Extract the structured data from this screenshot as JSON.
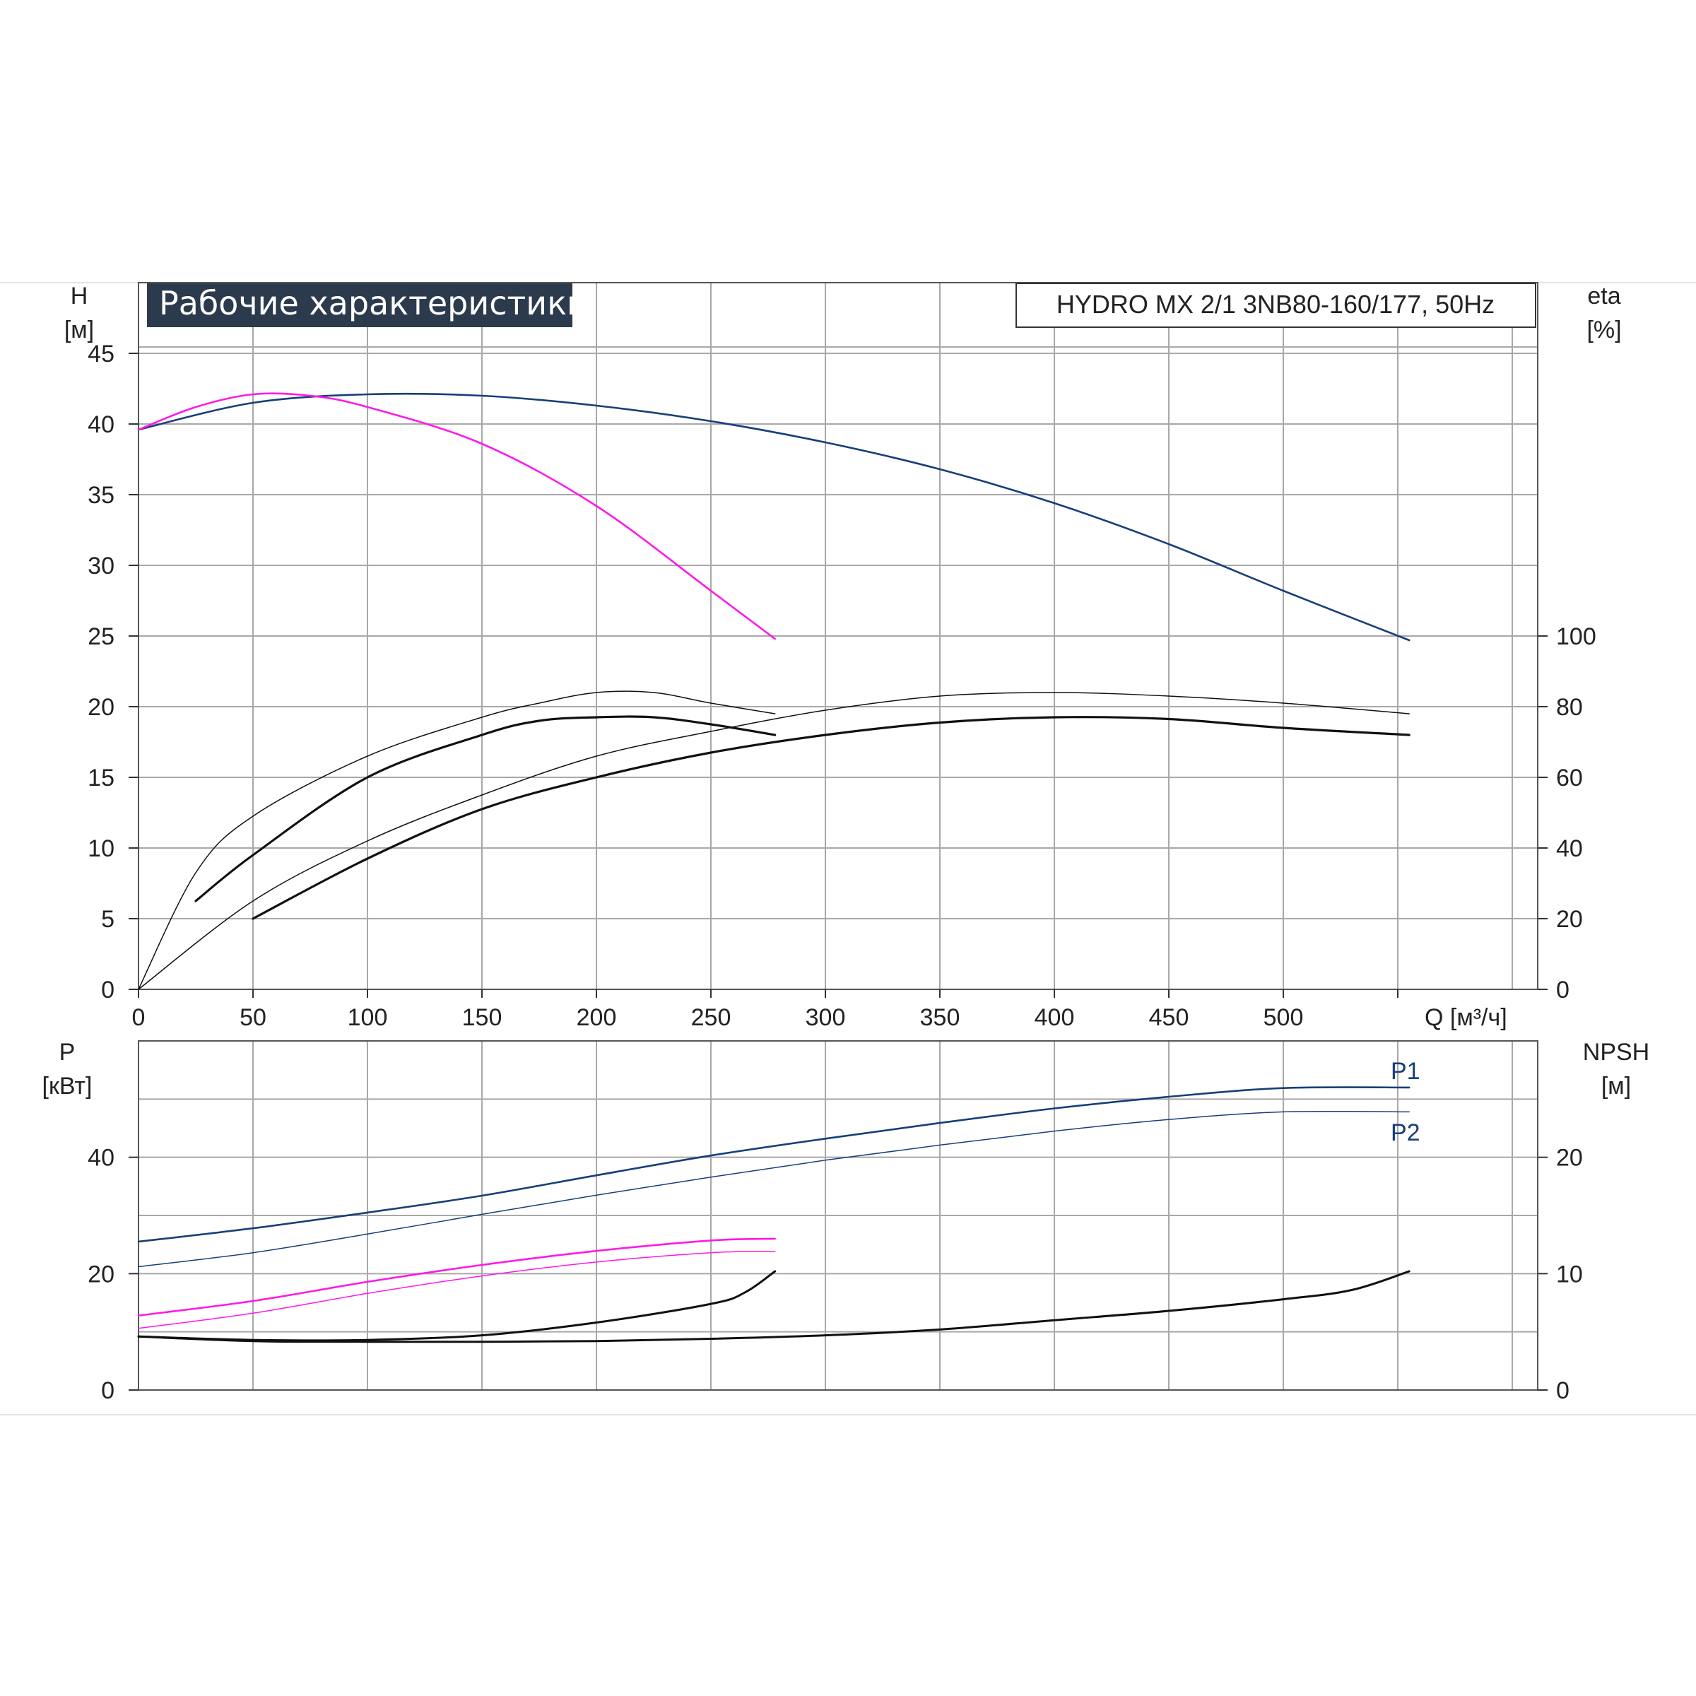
{
  "title": "Рабочие характеристики",
  "model": "HYDRO MX 2/1 3NB80-160/177, 50Hz",
  "colors": {
    "blue": "#173f7a",
    "magenta": "#ff19e8",
    "black": "#111111",
    "grid": "#a8a8a8",
    "title_bg": "#2c3a4e"
  },
  "chart_data": [
    {
      "type": "line",
      "name": "top",
      "x_label": "Q [м³/ч]",
      "x_ticks": [
        "0",
        "50",
        "100",
        "150",
        "200",
        "250",
        "300",
        "350",
        "400",
        "450",
        "500"
      ],
      "xlim": [
        0,
        610
      ],
      "y_label": [
        "H",
        "[м]"
      ],
      "y_ticks": [
        "0",
        "5",
        "10",
        "15",
        "20",
        "25",
        "30",
        "35",
        "40",
        "45"
      ],
      "ylim": [
        0,
        50
      ],
      "y2_label": [
        "eta",
        "[%]"
      ],
      "y2_ticks": [
        "0",
        "20",
        "40",
        "60",
        "80",
        "100"
      ],
      "y2lim": [
        0,
        200
      ],
      "grid": true,
      "series": [
        {
          "axis": "H",
          "color": "blue",
          "width": 2.6,
          "points": [
            [
              0,
              39.6
            ],
            [
              50,
              41.5
            ],
            [
              100,
              42.1
            ],
            [
              150,
              42.0
            ],
            [
              200,
              41.3
            ],
            [
              250,
              40.2
            ],
            [
              300,
              38.7
            ],
            [
              350,
              36.8
            ],
            [
              400,
              34.4
            ],
            [
              450,
              31.5
            ],
            [
              500,
              28.2
            ],
            [
              555,
              24.7
            ]
          ]
        },
        {
          "axis": "H",
          "color": "magenta",
          "width": 2.6,
          "points": [
            [
              0,
              39.6
            ],
            [
              25,
              41.2
            ],
            [
              50,
              42.1
            ],
            [
              75,
              42.0
            ],
            [
              100,
              41.2
            ],
            [
              150,
              38.6
            ],
            [
              200,
              34.2
            ],
            [
              250,
              28.2
            ],
            [
              278,
              24.8
            ]
          ]
        },
        {
          "axis": "eta",
          "color": "black",
          "width": 1.5,
          "points": [
            [
              0,
              0
            ],
            [
              25,
              33
            ],
            [
              50,
              49
            ],
            [
              100,
              66
            ],
            [
              150,
              77
            ],
            [
              175,
              81
            ],
            [
              200,
              84
            ],
            [
              225,
              84
            ],
            [
              250,
              81
            ],
            [
              278,
              78
            ]
          ]
        },
        {
          "axis": "eta",
          "color": "black",
          "width": 3.2,
          "points": [
            [
              25,
              25
            ],
            [
              50,
              38
            ],
            [
              100,
              60
            ],
            [
              150,
              72
            ],
            [
              175,
              76
            ],
            [
              200,
              77
            ],
            [
              225,
              77
            ],
            [
              250,
              75
            ],
            [
              278,
              72
            ]
          ]
        },
        {
          "axis": "eta",
          "color": "black",
          "width": 1.5,
          "points": [
            [
              0,
              0
            ],
            [
              50,
              25
            ],
            [
              100,
              42
            ],
            [
              150,
              55
            ],
            [
              200,
              66
            ],
            [
              250,
              73
            ],
            [
              300,
              79
            ],
            [
              350,
              83
            ],
            [
              400,
              84
            ],
            [
              450,
              83
            ],
            [
              500,
              81
            ],
            [
              555,
              78
            ]
          ]
        },
        {
          "axis": "eta",
          "color": "black",
          "width": 3.2,
          "points": [
            [
              50,
              20
            ],
            [
              100,
              37
            ],
            [
              150,
              51
            ],
            [
              200,
              60
            ],
            [
              250,
              67
            ],
            [
              300,
              72
            ],
            [
              350,
              75.5
            ],
            [
              400,
              77
            ],
            [
              450,
              76.5
            ],
            [
              500,
              74
            ],
            [
              555,
              72
            ]
          ]
        }
      ]
    },
    {
      "type": "line",
      "name": "bottom",
      "x_ticks": [],
      "xlim": [
        0,
        610
      ],
      "y_label": [
        "P",
        "[кВт]"
      ],
      "y_ticks": [
        "0",
        "20",
        "40"
      ],
      "ylim": [
        0,
        60
      ],
      "y2_label": [
        "NPSH",
        "[м]"
      ],
      "y2_ticks": [
        "0",
        "10",
        "20"
      ],
      "y2lim": [
        0,
        30
      ],
      "series_labels": [
        "P1",
        "P2"
      ],
      "grid": true,
      "series": [
        {
          "axis": "P",
          "color": "blue",
          "width": 2.6,
          "points": [
            [
              0,
              25.5
            ],
            [
              50,
              27.8
            ],
            [
              100,
              30.5
            ],
            [
              150,
              33.4
            ],
            [
              200,
              36.9
            ],
            [
              250,
              40.3
            ],
            [
              300,
              43.2
            ],
            [
              350,
              45.9
            ],
            [
              400,
              48.4
            ],
            [
              450,
              50.4
            ],
            [
              500,
              51.9
            ],
            [
              555,
              52.0
            ]
          ]
        },
        {
          "axis": "P",
          "color": "blue",
          "width": 1.5,
          "points": [
            [
              0,
              21.2
            ],
            [
              50,
              23.6
            ],
            [
              100,
              26.8
            ],
            [
              150,
              30.2
            ],
            [
              200,
              33.5
            ],
            [
              250,
              36.6
            ],
            [
              300,
              39.5
            ],
            [
              350,
              42.1
            ],
            [
              400,
              44.5
            ],
            [
              450,
              46.5
            ],
            [
              500,
              47.8
            ],
            [
              555,
              47.8
            ]
          ]
        },
        {
          "axis": "P",
          "color": "magenta",
          "width": 2.6,
          "points": [
            [
              0,
              12.8
            ],
            [
              50,
              15.3
            ],
            [
              100,
              18.6
            ],
            [
              150,
              21.5
            ],
            [
              200,
              23.9
            ],
            [
              250,
              25.7
            ],
            [
              278,
              26.0
            ]
          ]
        },
        {
          "axis": "P",
          "color": "magenta",
          "width": 1.5,
          "points": [
            [
              0,
              10.6
            ],
            [
              50,
              13.2
            ],
            [
              100,
              16.6
            ],
            [
              150,
              19.6
            ],
            [
              200,
              22.0
            ],
            [
              250,
              23.6
            ],
            [
              278,
              23.8
            ]
          ]
        },
        {
          "axis": "NPSH",
          "color": "black",
          "width": 3.0,
          "points": [
            [
              0,
              4.6
            ],
            [
              50,
              4.3
            ],
            [
              100,
              4.3
            ],
            [
              150,
              4.7
            ],
            [
              200,
              5.8
            ],
            [
              250,
              7.4
            ],
            [
              265,
              8.4
            ],
            [
              278,
              10.2
            ]
          ]
        },
        {
          "axis": "NPSH",
          "color": "black",
          "width": 3.0,
          "points": [
            [
              0,
              4.6
            ],
            [
              50,
              4.2
            ],
            [
              100,
              4.15
            ],
            [
              150,
              4.15
            ],
            [
              200,
              4.2
            ],
            [
              250,
              4.4
            ],
            [
              300,
              4.7
            ],
            [
              350,
              5.2
            ],
            [
              400,
              6.0
            ],
            [
              450,
              6.8
            ],
            [
              500,
              7.8
            ],
            [
              530,
              8.6
            ],
            [
              555,
              10.2
            ]
          ]
        }
      ]
    }
  ]
}
